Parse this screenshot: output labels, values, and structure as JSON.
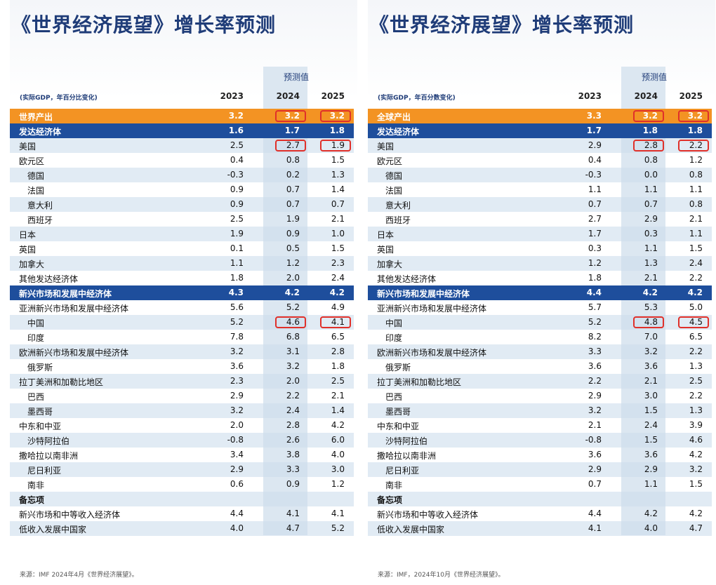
{
  "panels": [
    {
      "title": "《世界经济展望》增长率预测",
      "forecast_label": "预测值",
      "unit_note": "(实际GDP，年百分比变化)",
      "years": [
        "2023",
        "2024",
        "2025"
      ],
      "rows": [
        [
          "世界产出",
          "3.2",
          "3.2",
          "3.2"
        ],
        [
          "发达经济体",
          "1.6",
          "1.7",
          "1.8"
        ],
        [
          "美国",
          "2.5",
          "2.7",
          "1.9"
        ],
        [
          "欧元区",
          "0.4",
          "0.8",
          "1.5"
        ],
        [
          "德国",
          "-0.3",
          "0.2",
          "1.3"
        ],
        [
          "法国",
          "0.9",
          "0.7",
          "1.4"
        ],
        [
          "意大利",
          "0.9",
          "0.7",
          "0.7"
        ],
        [
          "西班牙",
          "2.5",
          "1.9",
          "2.1"
        ],
        [
          "日本",
          "1.9",
          "0.9",
          "1.0"
        ],
        [
          "英国",
          "0.1",
          "0.5",
          "1.5"
        ],
        [
          "加拿大",
          "1.1",
          "1.2",
          "2.3"
        ],
        [
          "其他发达经济体",
          "1.8",
          "2.0",
          "2.4"
        ],
        [
          "新兴市场和发展中经济体",
          "4.3",
          "4.2",
          "4.2"
        ],
        [
          "亚洲新兴市场和发展中经济体",
          "5.6",
          "5.2",
          "4.9"
        ],
        [
          "中国",
          "5.2",
          "4.6",
          "4.1"
        ],
        [
          "印度",
          "7.8",
          "6.8",
          "6.5"
        ],
        [
          "欧洲新兴市场和发展中经济体",
          "3.2",
          "3.1",
          "2.8"
        ],
        [
          "俄罗斯",
          "3.6",
          "3.2",
          "1.8"
        ],
        [
          "拉丁美洲和加勒比地区",
          "2.3",
          "2.0",
          "2.5"
        ],
        [
          "巴西",
          "2.9",
          "2.2",
          "2.1"
        ],
        [
          "墨西哥",
          "3.2",
          "2.4",
          "1.4"
        ],
        [
          "中东和中亚",
          "2.0",
          "2.8",
          "4.2"
        ],
        [
          "沙特阿拉伯",
          "-0.8",
          "2.6",
          "6.0"
        ],
        [
          "撒哈拉以南非洲",
          "3.4",
          "3.8",
          "4.0"
        ],
        [
          "尼日利亚",
          "2.9",
          "3.3",
          "3.0"
        ],
        [
          "南非",
          "0.6",
          "0.9",
          "1.2"
        ],
        [
          "备忘项"
        ],
        [
          "新兴市场和中等收入经济体",
          "4.4",
          "4.1",
          "4.1"
        ],
        [
          "低收入发展中国家",
          "4.0",
          "4.7",
          "5.2"
        ]
      ],
      "source": "来源：IMF 2024年4月《世界经济展望》。"
    },
    {
      "title": "《世界经济展望》增长率预测",
      "forecast_label": "预测值",
      "unit_note": "(实际GDP，年百分数变化)",
      "years": [
        "2023",
        "2024",
        "2025"
      ],
      "rows": [
        [
          "全球产出",
          "3.3",
          "3.2",
          "3.2"
        ],
        [
          "发达经济体",
          "1.7",
          "1.8",
          "1.8"
        ],
        [
          "美国",
          "2.9",
          "2.8",
          "2.2"
        ],
        [
          "欧元区",
          "0.4",
          "0.8",
          "1.2"
        ],
        [
          "德国",
          "-0.3",
          "0.0",
          "0.8"
        ],
        [
          "法国",
          "1.1",
          "1.1",
          "1.1"
        ],
        [
          "意大利",
          "0.7",
          "0.7",
          "0.8"
        ],
        [
          "西班牙",
          "2.7",
          "2.9",
          "2.1"
        ],
        [
          "日本",
          "1.7",
          "0.3",
          "1.1"
        ],
        [
          "英国",
          "0.3",
          "1.1",
          "1.5"
        ],
        [
          "加拿大",
          "1.2",
          "1.3",
          "2.4"
        ],
        [
          "其他发达经济体",
          "1.8",
          "2.1",
          "2.2"
        ],
        [
          "新兴市场和发展中经济体",
          "4.4",
          "4.2",
          "4.2"
        ],
        [
          "亚洲新兴市场和发展中经济体",
          "5.7",
          "5.3",
          "5.0"
        ],
        [
          "中国",
          "5.2",
          "4.8",
          "4.5"
        ],
        [
          "印度",
          "8.2",
          "7.0",
          "6.5"
        ],
        [
          "欧洲新兴市场和发展中经济体",
          "3.3",
          "3.2",
          "2.2"
        ],
        [
          "俄罗斯",
          "3.6",
          "3.6",
          "1.3"
        ],
        [
          "拉丁美洲和加勒比地区",
          "2.2",
          "2.1",
          "2.5"
        ],
        [
          "巴西",
          "2.9",
          "3.0",
          "2.2"
        ],
        [
          "墨西哥",
          "3.2",
          "1.5",
          "1.3"
        ],
        [
          "中东和中亚",
          "2.1",
          "2.4",
          "3.9"
        ],
        [
          "沙特阿拉伯",
          "-0.8",
          "1.5",
          "4.6"
        ],
        [
          "撒哈拉以南非洲",
          "3.6",
          "3.6",
          "4.2"
        ],
        [
          "尼日利亚",
          "2.9",
          "2.9",
          "3.2"
        ],
        [
          "南非",
          "0.7",
          "1.1",
          "1.5"
        ],
        [
          "备忘项"
        ],
        [
          "新兴市场和中等收入经济体",
          "4.4",
          "4.2",
          "4.2"
        ],
        [
          "低收入发展中国家",
          "4.1",
          "4.0",
          "4.7"
        ]
      ],
      "source": "来源：IMF，2024年10月《世界经济展望》。"
    }
  ]
}
